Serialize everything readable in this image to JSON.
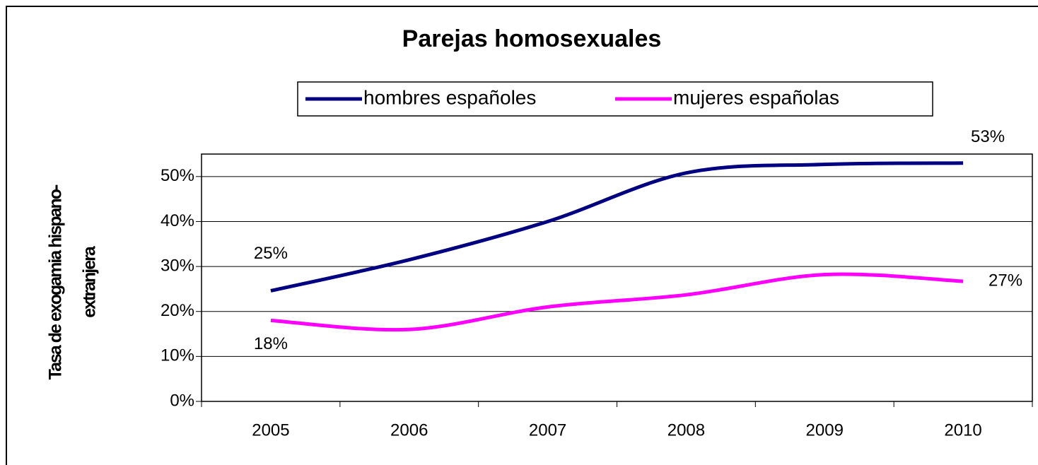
{
  "chart_data": {
    "type": "line",
    "title": "Parejas homosexuales",
    "ylabel": [
      "Tasa de exogamia hispano-",
      "extranjera"
    ],
    "categories": [
      "2005",
      "2006",
      "2007",
      "2008",
      "2009",
      "2010"
    ],
    "series": [
      {
        "name": "hombres españoles",
        "color": "#000080",
        "values": [
          24.6,
          31.5,
          40,
          50.8,
          52.7,
          53
        ],
        "value_labels": [
          "25%",
          null,
          null,
          null,
          null,
          "53%"
        ]
      },
      {
        "name": "mujeres españolas",
        "color": "#ff00ff",
        "values": [
          18,
          16,
          21,
          23.7,
          28.2,
          26.7
        ],
        "value_labels": [
          "18%",
          null,
          null,
          null,
          null,
          "27%"
        ]
      }
    ],
    "ylim": [
      0,
      55
    ],
    "yticks": [
      {
        "value": 0,
        "label": "0%"
      },
      {
        "value": 10,
        "label": "10%"
      },
      {
        "value": 20,
        "label": "20%"
      },
      {
        "value": 30,
        "label": "30%"
      },
      {
        "value": 40,
        "label": "40%"
      },
      {
        "value": 50,
        "label": "50%"
      }
    ],
    "grid": true,
    "legend": "top"
  }
}
